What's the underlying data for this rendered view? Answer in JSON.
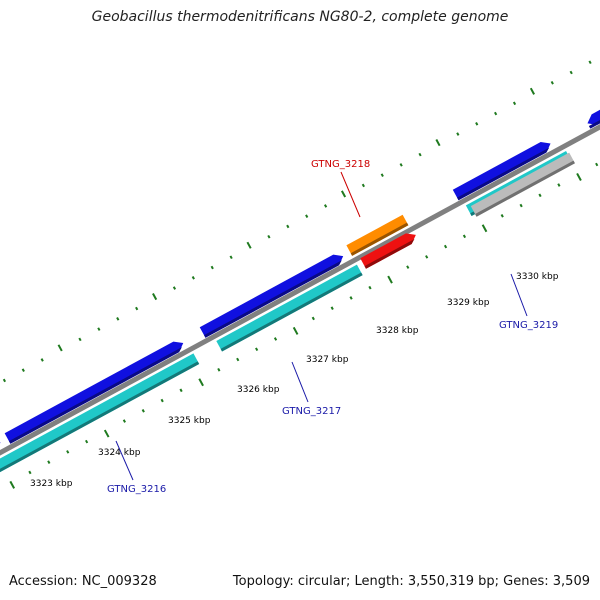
{
  "title": "Geobacillus thermodenitrificans NG80-2, complete genome",
  "footer": {
    "accession": "Accession: NC_009328",
    "topology": "Topology: circular; Length: 3,550,319 bp; Genes: 3,509"
  },
  "colors": {
    "backbone": "#808080",
    "cds_forward": "#1010e0",
    "cds_reverse": "#20c8c8",
    "trna": "#ff8c00",
    "rrna": "#ee1111",
    "pseudogene": "#bbbbbb",
    "tick": "#1f7a1f",
    "gene_label": "#1a1aa8",
    "highlight_label": "#cc0000",
    "scale_label": "#000000"
  },
  "chart_data": {
    "type": "genome-map",
    "scale_labels": [
      "3323 kbp",
      "3324 kbp",
      "3325 kbp",
      "3326 kbp",
      "3327 kbp",
      "3328 kbp",
      "3329 kbp",
      "3330 kbp"
    ],
    "gene_labels": [
      {
        "text": "GTNG_3216",
        "color": "gene_label"
      },
      {
        "text": "GTNG_3217",
        "color": "gene_label"
      },
      {
        "text": "GTNG_3218",
        "color": "highlight_label"
      },
      {
        "text": "GTNG_3219",
        "color": "gene_label"
      }
    ],
    "features": [
      {
        "kind": "cds_forward",
        "strand": "+"
      },
      {
        "kind": "cds_forward",
        "strand": "+"
      },
      {
        "kind": "cds_forward",
        "strand": "+"
      },
      {
        "kind": "cds_forward",
        "strand": "+"
      },
      {
        "kind": "cds_forward",
        "strand": "+"
      },
      {
        "kind": "cds_reverse",
        "strand": "-"
      },
      {
        "kind": "cds_reverse",
        "strand": "-"
      },
      {
        "kind": "cds_reverse",
        "strand": "-"
      },
      {
        "kind": "trna",
        "strand": "+"
      },
      {
        "kind": "rrna",
        "strand": "-"
      },
      {
        "kind": "pseudogene",
        "strand": "-"
      }
    ]
  }
}
